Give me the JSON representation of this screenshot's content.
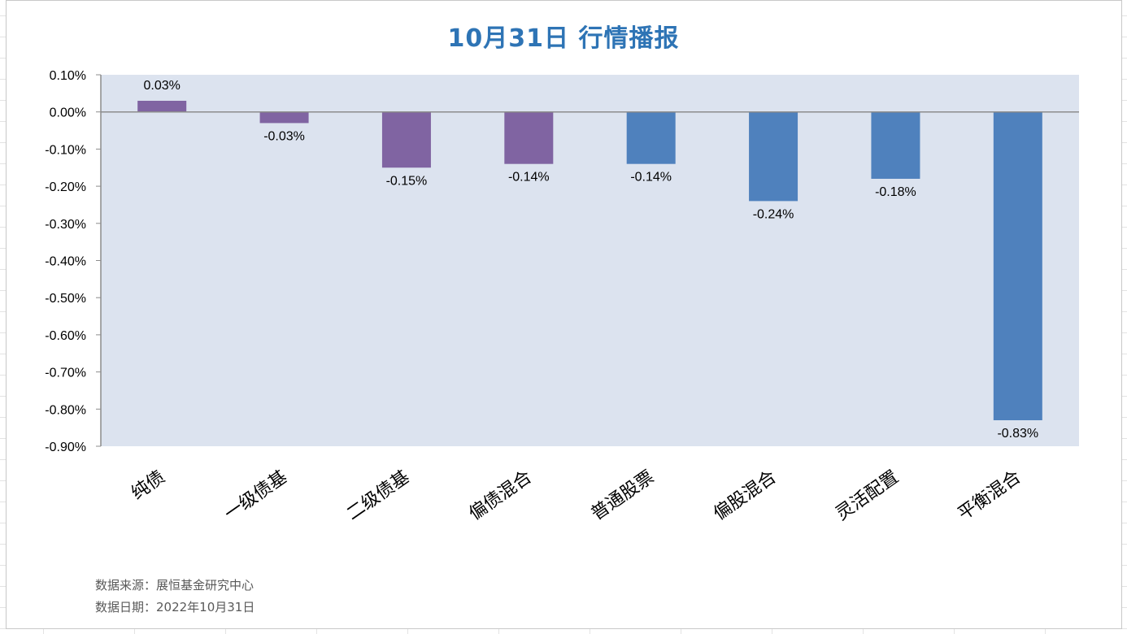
{
  "chart_data": {
    "type": "bar",
    "title": "10月31日  行情播报",
    "categories": [
      "纯债",
      "一级债基",
      "二级债基",
      "偏债混合",
      "普通股票",
      "偏股混合",
      "灵活配置",
      "平衡混合"
    ],
    "values": [
      0.03,
      -0.03,
      -0.15,
      -0.14,
      -0.14,
      -0.24,
      -0.18,
      -0.83
    ],
    "data_labels": [
      "0.03%",
      "-0.03%",
      "-0.15%",
      "-0.14%",
      "-0.14%",
      "-0.24%",
      "-0.18%",
      "-0.83%"
    ],
    "bar_colors": [
      "#8064a2",
      "#8064a2",
      "#8064a2",
      "#8064a2",
      "#4f81bd",
      "#4f81bd",
      "#4f81bd",
      "#4f81bd"
    ],
    "ylim": [
      -0.9,
      0.1
    ],
    "yticks": [
      0.1,
      0.0,
      -0.1,
      -0.2,
      -0.3,
      -0.4,
      -0.5,
      -0.6,
      -0.7,
      -0.8,
      -0.9
    ],
    "ytick_labels": [
      "0.10%",
      "0.00%",
      "-0.10%",
      "-0.20%",
      "-0.30%",
      "-0.40%",
      "-0.50%",
      "-0.60%",
      "-0.70%",
      "-0.80%",
      "-0.90%"
    ],
    "plot_background": "#dce3ef",
    "xlabel": "",
    "ylabel": "",
    "legend": "none",
    "grid": false
  },
  "source": {
    "line1": "数据来源：展恒基金研究中心",
    "line2": "数据日期：2022年10月31日"
  }
}
